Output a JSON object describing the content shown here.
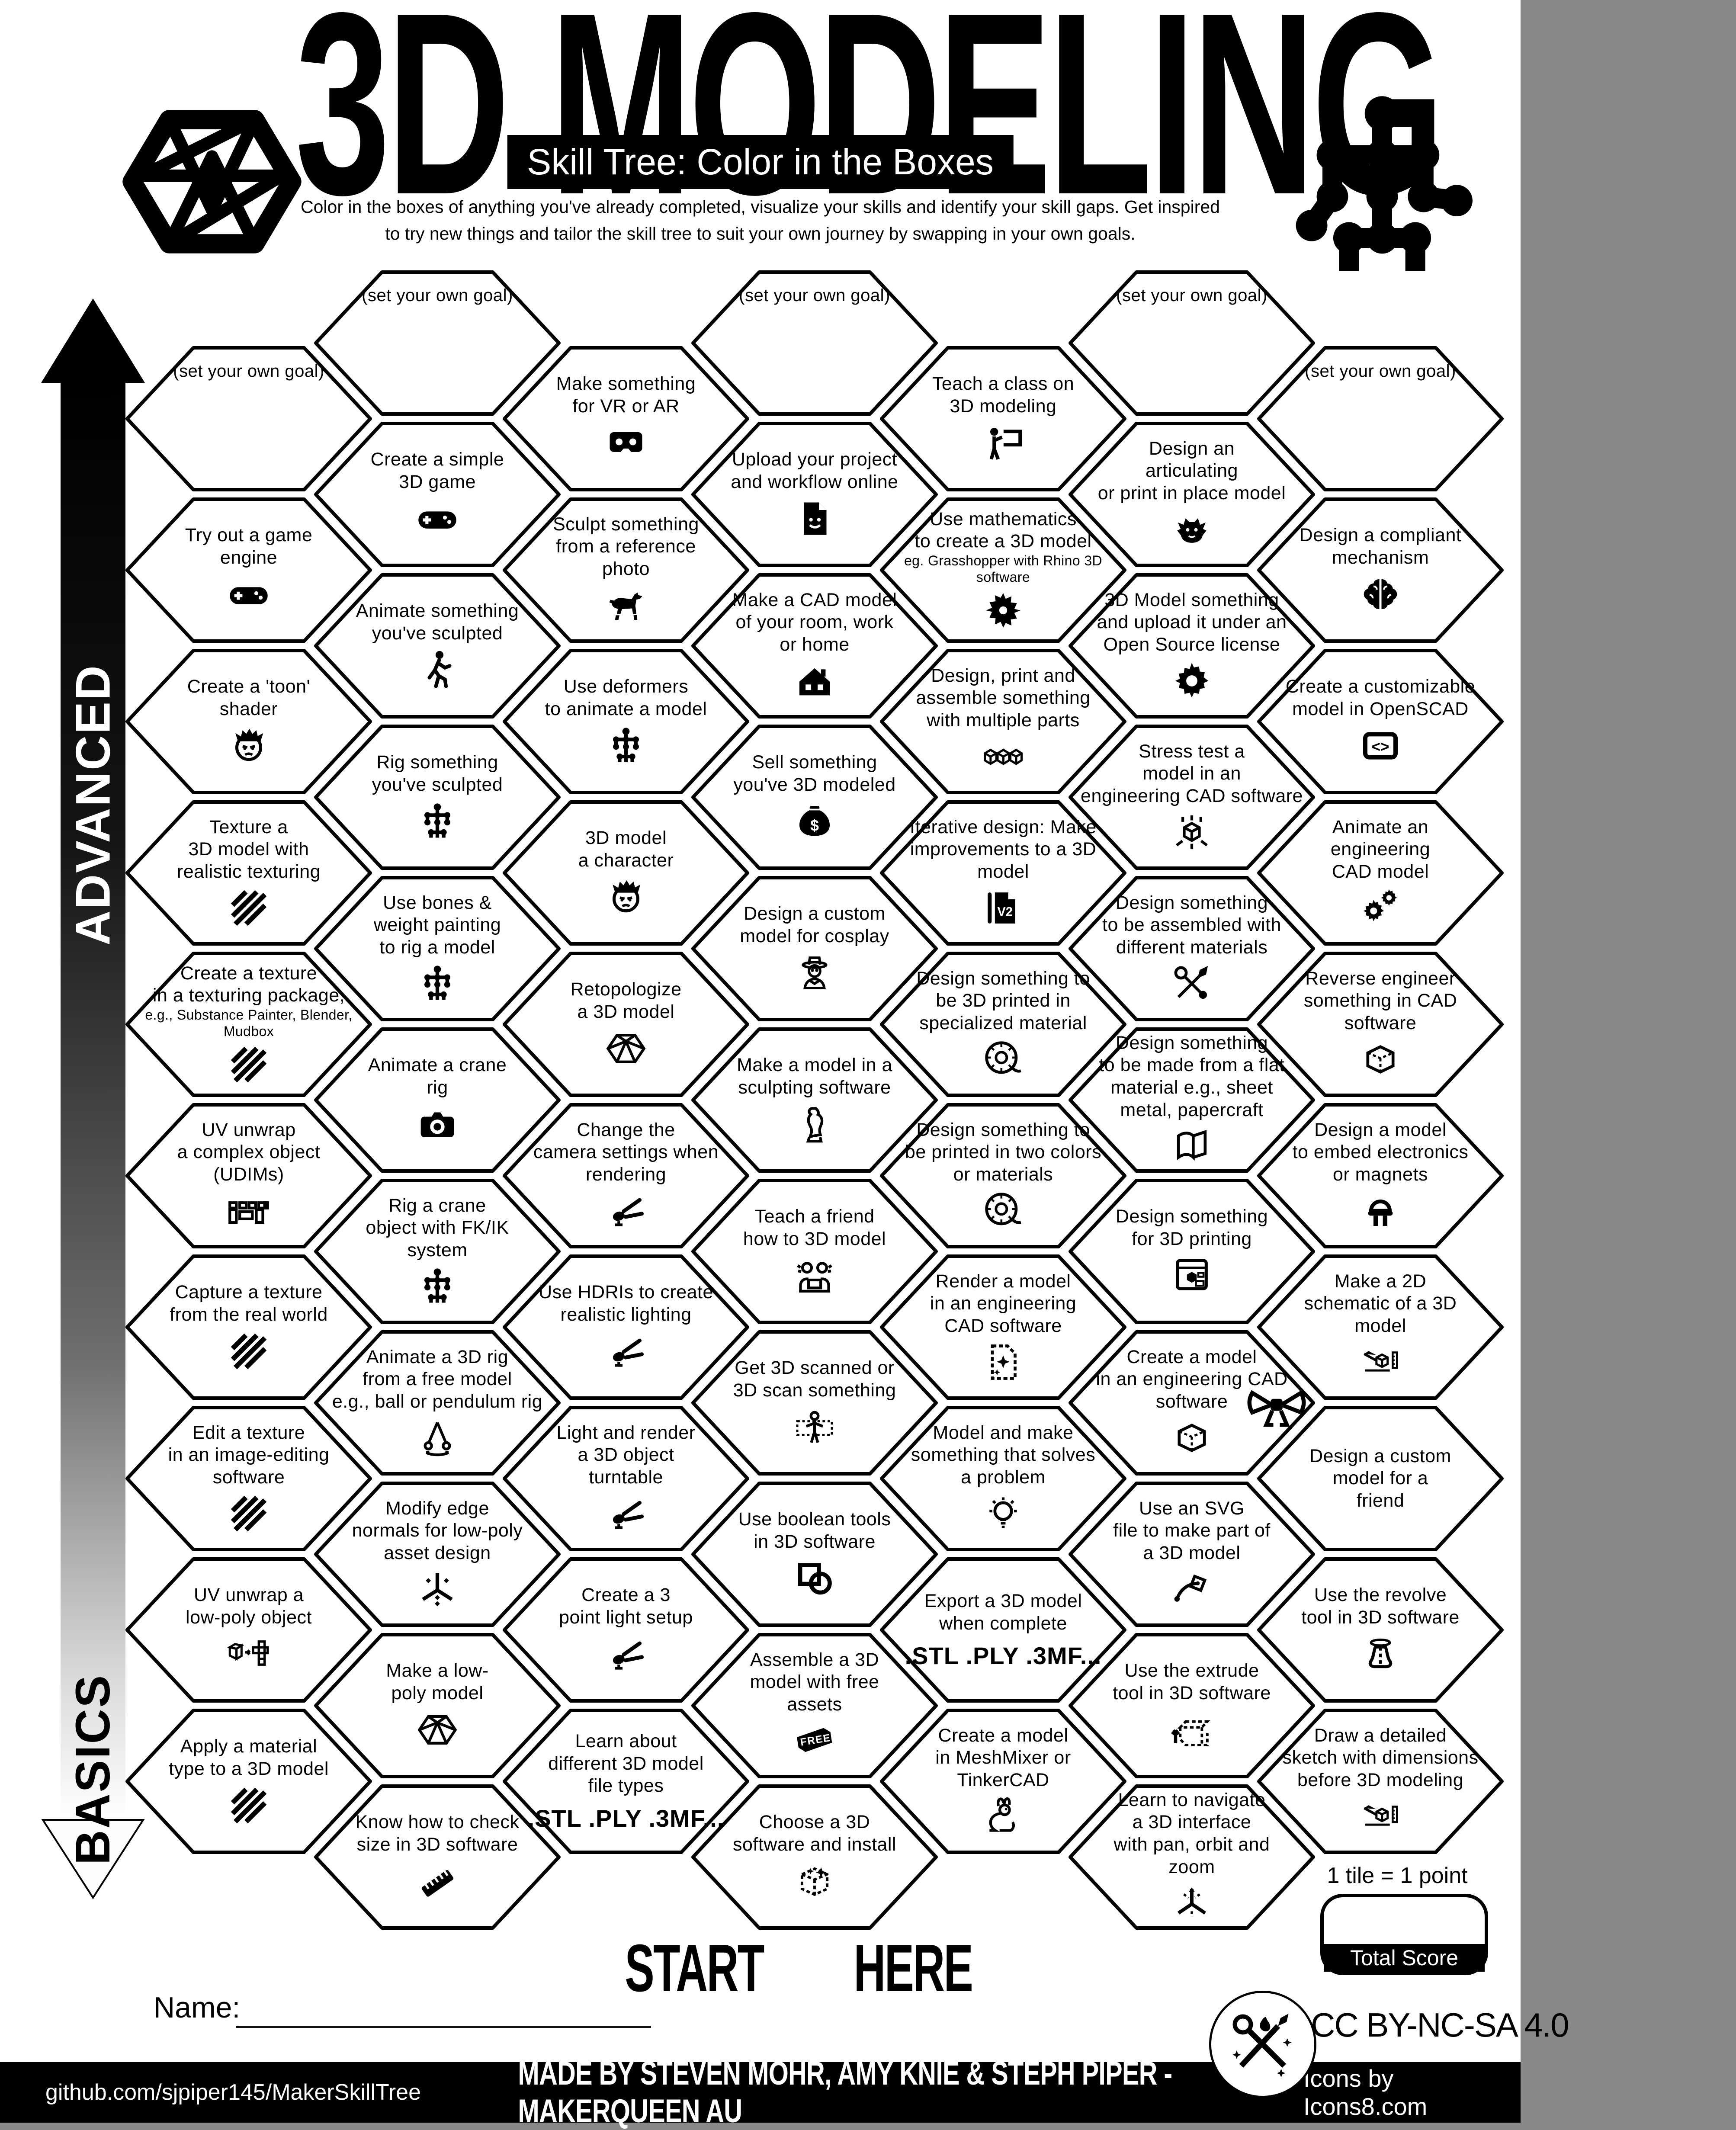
{
  "header": {
    "title": "3D MODELING",
    "subtitle": "Skill Tree: Color in the Boxes",
    "description_line1": "Color in the boxes of anything you've already completed, visualize your skills and identify your skill gaps.  Get inspired",
    "description_line2": "to try new things and tailor the skill tree to suit your own journey by swapping in your own goals."
  },
  "axis": {
    "top_label": "ADVANCED",
    "bottom_label": "BASICS"
  },
  "start": {
    "label_left": "START",
    "label_right": "HERE"
  },
  "score": {
    "note": "1 tile = 1 point",
    "total_label": "Total Score"
  },
  "name_label": "Name:",
  "license": "CC BY-NC-SA 4.0",
  "footer": {
    "left": "github.com/sjpiper145/MakerSkillTree",
    "center": "MADE BY STEVEN MOHR, AMY KNIE & STEPH PIPER  -  MAKERQUEEN AU",
    "right": "Icons by Icons8.com"
  },
  "hexes": [
    {
      "col": 0,
      "row": 0,
      "goal": true,
      "lines": [
        "(set your own goal)"
      ],
      "icon": null
    },
    {
      "col": 0,
      "row": 1,
      "lines": [
        "Try out a game",
        "engine"
      ],
      "icon": "gamepad"
    },
    {
      "col": 0,
      "row": 2,
      "lines": [
        "Create a 'toon'",
        "shader"
      ],
      "icon": "face"
    },
    {
      "col": 0,
      "row": 3,
      "lines": [
        "Texture a",
        "3D model with",
        "realistic texturing"
      ],
      "icon": "hatch"
    },
    {
      "col": 0,
      "row": 4,
      "lines": [
        "Create a texture",
        "in a texturing package,"
      ],
      "note": [
        "e.g., Substance Painter, Blender,",
        "Mudbox"
      ],
      "icon": "hatch"
    },
    {
      "col": 0,
      "row": 5,
      "lines": [
        "UV unwrap",
        "a complex object",
        "(UDIMs)"
      ],
      "icon": "udims"
    },
    {
      "col": 0,
      "row": 6,
      "lines": [
        "Capture a texture",
        "from the real world"
      ],
      "icon": "hatch"
    },
    {
      "col": 0,
      "row": 7,
      "lines": [
        "Edit a texture",
        "in an image-editing",
        "software"
      ],
      "icon": "hatch"
    },
    {
      "col": 0,
      "row": 8,
      "lines": [
        "UV unwrap a",
        "low-poly object"
      ],
      "icon": "unwrap"
    },
    {
      "col": 0,
      "row": 9,
      "lines": [
        "Apply a material",
        "type to a 3D model"
      ],
      "icon": "hatch"
    },
    {
      "col": 1,
      "row": 0,
      "goal": true,
      "lines": [
        "(set your own goal)"
      ],
      "icon": null
    },
    {
      "col": 1,
      "row": 1,
      "lines": [
        "Create a simple",
        "3D game"
      ],
      "icon": "gamepad"
    },
    {
      "col": 1,
      "row": 2,
      "lines": [
        "Animate something",
        "you've sculpted"
      ],
      "icon": "walk"
    },
    {
      "col": 1,
      "row": 3,
      "lines": [
        "Rig something",
        "you've sculpted"
      ],
      "icon": "rig"
    },
    {
      "col": 1,
      "row": 4,
      "lines": [
        "Use bones &",
        "weight painting",
        "to rig a model"
      ],
      "icon": "rig"
    },
    {
      "col": 1,
      "row": 5,
      "lines": [
        "Animate a crane",
        "rig"
      ],
      "icon": "camera"
    },
    {
      "col": 1,
      "row": 6,
      "lines": [
        "Rig a crane",
        "object with FK/IK",
        "system"
      ],
      "icon": "rig"
    },
    {
      "col": 1,
      "row": 7,
      "lines": [
        "Animate a 3D rig",
        "from a free model",
        "e.g., ball or pendulum rig"
      ],
      "icon": "pendulum"
    },
    {
      "col": 1,
      "row": 8,
      "lines": [
        "Modify edge",
        "normals for low-poly",
        "asset design"
      ],
      "icon": "normals"
    },
    {
      "col": 1,
      "row": 9,
      "lines": [
        "Make a low-",
        "poly model"
      ],
      "icon": "icosphere"
    },
    {
      "col": 1,
      "row": 10,
      "lines": [
        "Know how to check",
        "size in 3D software"
      ],
      "icon": "ruler"
    },
    {
      "col": 2,
      "row": 0,
      "lines": [
        "Make something",
        "for VR or AR"
      ],
      "icon": "vr"
    },
    {
      "col": 2,
      "row": 1,
      "lines": [
        "Sculpt something",
        "from a reference",
        "photo"
      ],
      "icon": "dog"
    },
    {
      "col": 2,
      "row": 2,
      "lines": [
        "Use deformers",
        "to animate a model"
      ],
      "icon": "rig"
    },
    {
      "col": 2,
      "row": 3,
      "lines": [
        "3D model",
        "a character"
      ],
      "icon": "face"
    },
    {
      "col": 2,
      "row": 4,
      "lines": [
        "Retopologize",
        "a 3D model"
      ],
      "icon": "icosphere"
    },
    {
      "col": 2,
      "row": 5,
      "lines": [
        "Change the",
        "camera settings when",
        "rendering"
      ],
      "icon": "spotlight"
    },
    {
      "col": 2,
      "row": 6,
      "lines": [
        "Use HDRIs to create",
        "realistic lighting"
      ],
      "icon": "spotlight"
    },
    {
      "col": 2,
      "row": 7,
      "lines": [
        "Light and render",
        "a 3D object",
        "turntable"
      ],
      "icon": "spotlight"
    },
    {
      "col": 2,
      "row": 8,
      "lines": [
        "Create a 3",
        "point light setup"
      ],
      "icon": "spotlight"
    },
    {
      "col": 2,
      "row": 9,
      "lines": [
        "Learn about",
        "different 3D model",
        "file types"
      ],
      "bold": ".STL .PLY .3MF...",
      "icon": null
    },
    {
      "col": 3,
      "row": 0,
      "goal": true,
      "lines": [
        "(set your own goal)"
      ],
      "icon": null
    },
    {
      "col": 3,
      "row": 1,
      "lines": [
        "Upload your project",
        "and workflow online"
      ],
      "icon": "docsmile"
    },
    {
      "col": 3,
      "row": 2,
      "lines": [
        "Make a CAD model",
        "of your room, work",
        "or home"
      ],
      "icon": "house"
    },
    {
      "col": 3,
      "row": 3,
      "lines": [
        "Sell something",
        "you've 3D modeled"
      ],
      "icon": "moneybag"
    },
    {
      "col": 3,
      "row": 4,
      "lines": [
        "Design a custom",
        "model for cosplay"
      ],
      "icon": "cosplay"
    },
    {
      "col": 3,
      "row": 5,
      "lines": [
        "Make a model in a",
        "sculpting software"
      ],
      "icon": "statue"
    },
    {
      "col": 3,
      "row": 6,
      "lines": [
        "Teach a friend",
        "how to 3D model"
      ],
      "icon": "friends"
    },
    {
      "col": 3,
      "row": 7,
      "lines": [
        "Get 3D scanned or",
        "3D scan something"
      ],
      "icon": "scan"
    },
    {
      "col": 3,
      "row": 8,
      "lines": [
        "Use boolean tools",
        "in 3D software"
      ],
      "icon": "boolean"
    },
    {
      "col": 3,
      "row": 9,
      "lines": [
        "Assemble a 3D",
        "model with free",
        "assets"
      ],
      "icon": "freetag"
    },
    {
      "col": 3,
      "row": 10,
      "lines": [
        "Choose a 3D",
        "software and install"
      ],
      "icon": "boxsparkle"
    },
    {
      "col": 4,
      "row": 0,
      "lines": [
        "Teach a class on",
        "3D modeling"
      ],
      "icon": "teacher"
    },
    {
      "col": 4,
      "row": 1,
      "lines": [
        "Use mathematics",
        "to create a 3D model"
      ],
      "note": [
        "eg. Grasshopper with Rhino 3D",
        "software"
      ],
      "icon": "mathflower"
    },
    {
      "col": 4,
      "row": 2,
      "lines": [
        "Design, print and",
        "assemble something",
        "with multiple parts"
      ],
      "icon": "cubes3"
    },
    {
      "col": 4,
      "row": 3,
      "lines": [
        "Iterative design: Make",
        "improvements to a 3D",
        "model"
      ],
      "icon": "v2doc"
    },
    {
      "col": 4,
      "row": 4,
      "lines": [
        "Design something to",
        "be 3D printed in",
        "specialized material"
      ],
      "icon": "spool"
    },
    {
      "col": 4,
      "row": 5,
      "lines": [
        "Design something to",
        "be printed in two colors",
        "or materials"
      ],
      "icon": "spool"
    },
    {
      "col": 4,
      "row": 6,
      "lines": [
        "Render a model",
        "in an engineering",
        "CAD software"
      ],
      "icon": "docsparkle"
    },
    {
      "col": 4,
      "row": 7,
      "lines": [
        "Model and make",
        "something that solves",
        "a problem"
      ],
      "icon": "bulb"
    },
    {
      "col": 4,
      "row": 8,
      "lines": [
        "Export a 3D model",
        "when complete"
      ],
      "bold": ".STL .PLY .3MF...",
      "icon": null
    },
    {
      "col": 4,
      "row": 9,
      "lines": [
        "Create a model",
        "in MeshMixer or",
        "TinkerCAD"
      ],
      "icon": "rabbit"
    },
    {
      "col": 5,
      "row": 0,
      "goal": true,
      "lines": [
        "(set your own goal)"
      ],
      "icon": null
    },
    {
      "col": 5,
      "row": 1,
      "lines": [
        "Design an",
        "articulating",
        "or print in place model"
      ],
      "icon": "dragon"
    },
    {
      "col": 5,
      "row": 2,
      "lines": [
        "3D Model something",
        "and upload it under an",
        "Open Source license"
      ],
      "icon": "gear"
    },
    {
      "col": 5,
      "row": 3,
      "lines": [
        "Stress test a",
        "model in an",
        "engineering CAD software"
      ],
      "icon": "stress"
    },
    {
      "col": 5,
      "row": 4,
      "lines": [
        "Design something",
        "to be assembled with",
        "different materials"
      ],
      "icon": "tools"
    },
    {
      "col": 5,
      "row": 5,
      "lines": [
        "Design something",
        "to be made from a flat",
        "material e.g., sheet",
        "metal, papercraft"
      ],
      "icon": "sheet"
    },
    {
      "col": 5,
      "row": 6,
      "lines": [
        "Design something",
        "for 3D printing"
      ],
      "icon": "printer"
    },
    {
      "col": 5,
      "row": 7,
      "lines": [
        "Create a model",
        "in an engineering CAD",
        "software"
      ],
      "icon": "cube"
    },
    {
      "col": 5,
      "row": 8,
      "lines": [
        "Use an SVG",
        "file to make part of",
        "a 3D model"
      ],
      "icon": "svgpen"
    },
    {
      "col": 5,
      "row": 9,
      "lines": [
        "Use the extrude",
        "tool in 3D software"
      ],
      "icon": "extrude"
    },
    {
      "col": 5,
      "row": 10,
      "lines": [
        "Learn to navigate",
        "a 3D interface",
        "with pan, orbit and",
        "zoom"
      ],
      "icon": "axes"
    },
    {
      "col": 6,
      "row": 0,
      "goal": true,
      "lines": [
        "(set your own goal)"
      ],
      "icon": null
    },
    {
      "col": 6,
      "row": 1,
      "lines": [
        "Design a compliant",
        "mechanism"
      ],
      "icon": "brain"
    },
    {
      "col": 6,
      "row": 2,
      "lines": [
        "Create a customizable",
        "model in OpenSCAD"
      ],
      "icon": "codebox"
    },
    {
      "col": 6,
      "row": 3,
      "lines": [
        "Animate an",
        "engineering",
        "CAD model"
      ],
      "icon": "gears2"
    },
    {
      "col": 6,
      "row": 4,
      "lines": [
        "Reverse engineer",
        "something in CAD",
        "software"
      ],
      "icon": "cube"
    },
    {
      "col": 6,
      "row": 5,
      "lines": [
        "Design a model",
        "to embed electronics",
        "or magnets"
      ],
      "icon": "led"
    },
    {
      "col": 6,
      "row": 6,
      "lines": [
        "Make a 2D",
        "schematic of a 3D",
        "model"
      ],
      "icon": "sketch"
    },
    {
      "col": 6,
      "row": 7,
      "lines": [
        "Design a custom",
        "model for a",
        "friend"
      ],
      "icon": null,
      "bow": true
    },
    {
      "col": 6,
      "row": 8,
      "lines": [
        "Use the revolve",
        "tool in 3D software"
      ],
      "icon": "revolve"
    },
    {
      "col": 6,
      "row": 9,
      "lines": [
        "Draw a detailed",
        "sketch with dimensions",
        "before 3D modeling"
      ],
      "icon": "sketch"
    }
  ]
}
